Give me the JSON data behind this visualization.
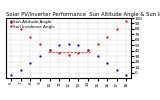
{
  "title": "Solar PV/Inverter Performance  Sun Altitude Angle & Sun Incidence Angle on PV Panels",
  "legend": [
    "Sun Altitude Angle",
    "Sun Incidence Angle"
  ],
  "background_color": "#ffffff",
  "grid_color": "#888888",
  "x_values": [
    6,
    7,
    8,
    9,
    10,
    11,
    12,
    13,
    14,
    15,
    16,
    17,
    18
  ],
  "altitude_y": [
    -5,
    5,
    17,
    30,
    41,
    50,
    53,
    50,
    41,
    30,
    17,
    5,
    -5
  ],
  "incidence_y": [
    94,
    80,
    66,
    53,
    42,
    35,
    32,
    35,
    42,
    53,
    66,
    80,
    94
  ],
  "horiz_line_x": [
    9.8,
    14.2
  ],
  "horiz_line_y": 38,
  "xlim": [
    5.5,
    18.5
  ],
  "ylim": [
    -10,
    100
  ],
  "yticks": [
    0,
    10,
    20,
    30,
    40,
    50,
    60,
    70,
    80,
    90,
    100
  ],
  "xtick_labels": [
    "6",
    "7",
    "8",
    "9",
    "10",
    "11",
    "12",
    "13",
    "14",
    "15",
    "16",
    "17",
    "18"
  ],
  "altitude_color": "#0000dd",
  "incidence_color": "#dd0000",
  "horiz_color": "#dd0000",
  "title_fontsize": 3.8,
  "legend_fontsize": 3.0,
  "tick_fontsize": 3.0,
  "marker_size": 1.2,
  "line_width": 0.5
}
